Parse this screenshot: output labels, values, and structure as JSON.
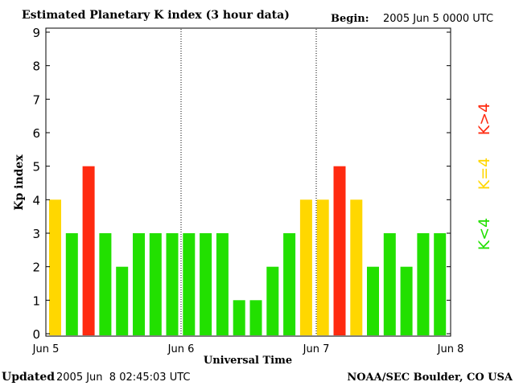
{
  "header": {
    "title": "Estimated Planetary K index (3 hour data)",
    "begin_label": "Begin:",
    "begin_value": "2005 Jun 5 0000 UTC"
  },
  "footer": {
    "updated_label": "Updated",
    "updated_value": "2005 Jun  8 02:45:03 UTC",
    "credit": "NOAA/SEC Boulder, CO USA"
  },
  "legend": {
    "items": [
      {
        "label": "K<4",
        "color": "#22e000"
      },
      {
        "label": "K=4",
        "color": "#ffd700"
      },
      {
        "label": "K>4",
        "color": "#ff2a10"
      }
    ]
  },
  "colors": {
    "low": "#22e000",
    "equal": "#ffd700",
    "high": "#ff2a10"
  },
  "chart_data": {
    "type": "bar",
    "title": "Estimated Planetary K index (3 hour data)",
    "xlabel": "Universal Time",
    "ylabel": "Kp index",
    "ylim": [
      0,
      9
    ],
    "yticks": [
      0,
      1,
      2,
      3,
      4,
      5,
      6,
      7,
      8,
      9
    ],
    "xticks": [
      "Jun 5",
      "Jun 6",
      "Jun 7",
      "Jun 8"
    ],
    "day_separators": [
      "Jun 6",
      "Jun 7"
    ],
    "values": [
      4,
      3,
      5,
      3,
      2,
      3,
      3,
      3,
      3,
      3,
      3,
      1,
      1,
      2,
      3,
      4,
      4,
      5,
      4,
      2,
      3,
      2,
      3,
      3
    ],
    "grid": false
  }
}
